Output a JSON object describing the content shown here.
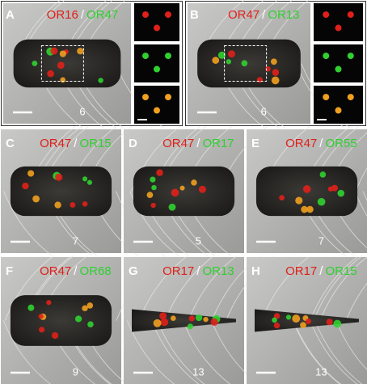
{
  "panels": [
    {
      "letter": "A",
      "red": "OR16",
      "sep": "/",
      "green": "OR47",
      "count": 6
    },
    {
      "letter": "B",
      "red": "OR47",
      "sep": "/",
      "green": "OR13",
      "count": 6
    },
    {
      "letter": "C",
      "red": "OR47",
      "sep": "/",
      "green": "OR15",
      "count": 7
    },
    {
      "letter": "D",
      "red": "OR47",
      "sep": "/",
      "green": "OR17",
      "count": 5
    },
    {
      "letter": "E",
      "red": "OR47",
      "sep": "/",
      "green": "OR55",
      "count": 7
    },
    {
      "letter": "F",
      "red": "OR47",
      "sep": "/",
      "green": "OR68",
      "count": 9
    },
    {
      "letter": "G",
      "red": "OR17",
      "sep": "/",
      "green": "OR13",
      "count": 13
    },
    {
      "letter": "H",
      "red": "OR17",
      "sep": "/",
      "green": "OR15",
      "count": 13
    }
  ]
}
